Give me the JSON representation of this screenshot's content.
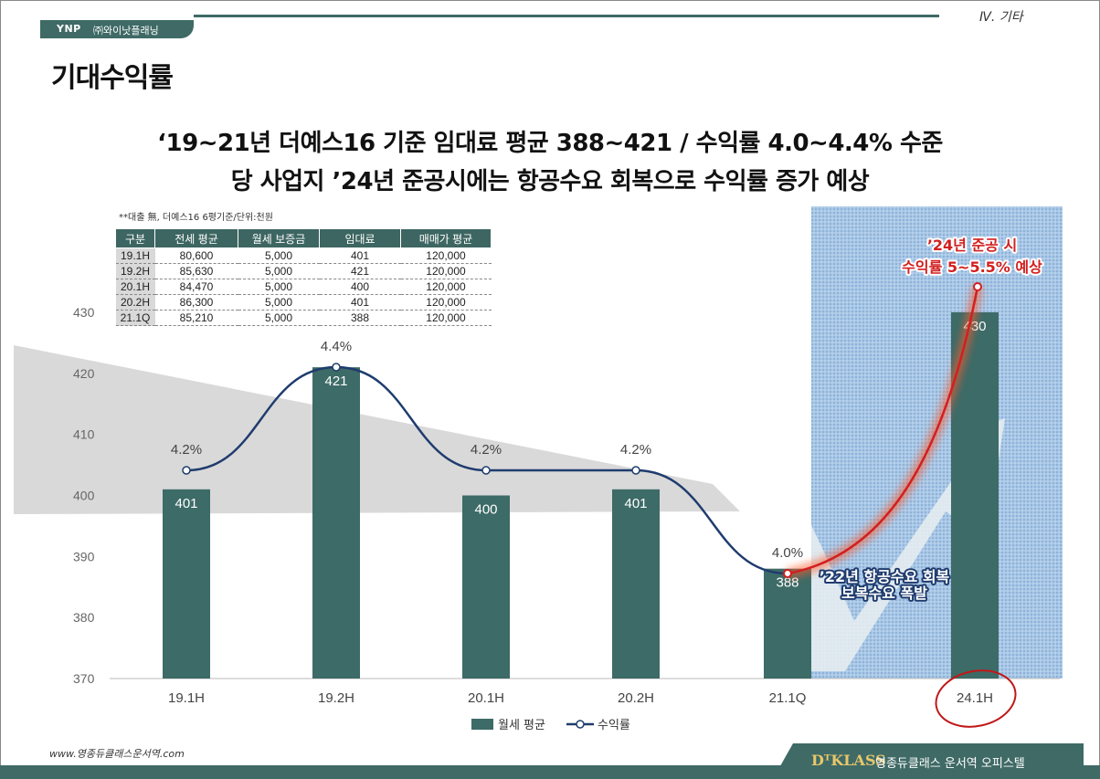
{
  "header": {
    "logo": "YNP",
    "company": "㈜와이낫플래닝",
    "section": "Ⅳ. 기타"
  },
  "page_title": "기대수익률",
  "headline": {
    "line1": "‘19~21년 더예스16 기준 임대료 평균 388~421 / 수익률 4.0~4.4% 수준",
    "line2": "당 사업지 ’24년 준공시에는 항공수요 회복으로 수익률 증가 예상"
  },
  "table": {
    "note": "**대출 無, 더예스16 6평기준/단위:천원",
    "headers": [
      "구분",
      "전세 평균",
      "월세 보증금",
      "임대료",
      "매매가 평균"
    ],
    "rows": [
      [
        "19.1H",
        "80,600",
        "5,000",
        "401",
        "120,000"
      ],
      [
        "19.2H",
        "85,630",
        "5,000",
        "421",
        "120,000"
      ],
      [
        "20.1H",
        "84,470",
        "5,000",
        "400",
        "120,000"
      ],
      [
        "20.2H",
        "86,300",
        "5,000",
        "401",
        "120,000"
      ],
      [
        "21.1Q",
        "85,210",
        "5,000",
        "388",
        "120,000"
      ]
    ]
  },
  "chart_data": {
    "type": "bar",
    "categories": [
      "19.1H",
      "19.2H",
      "20.1H",
      "20.2H",
      "21.1Q",
      "24.1H"
    ],
    "series": [
      {
        "name": "월세 평균",
        "type": "bar",
        "values": [
          401,
          421,
          400,
          401,
          388,
          430
        ]
      },
      {
        "name": "수익률",
        "type": "line",
        "values": [
          4.2,
          4.4,
          4.2,
          4.2,
          4.0,
          null
        ],
        "labels": [
          "4.2%",
          "4.4%",
          "4.2%",
          "4.2%",
          "4.0%",
          ""
        ]
      }
    ],
    "y_ticks": [
      370,
      380,
      390,
      400,
      410,
      420,
      430
    ],
    "ylim": [
      370,
      430
    ],
    "legend_position": "bottom",
    "colors": {
      "bar": "#3d6b67",
      "line": "#1f3c6e",
      "highlight": "#d21f1f",
      "highlight_area": "#a9c7e6"
    },
    "annotations": {
      "forecast": "’24년 준공 시 수익률 5~5.5% 예상",
      "forecast_line1": "’24년 준공 시",
      "forecast_line2": "수익률 5~5.5% 예상",
      "recovery_line1": "’22년 항공수요 회복",
      "recovery_line2": "보복수요 폭발"
    }
  },
  "footer": {
    "url": "www.영종듀클래스운서역.com",
    "brand_logo": "DᵁKLASS",
    "brand_name": "영종듀클래스 운서역 오피스텔"
  }
}
